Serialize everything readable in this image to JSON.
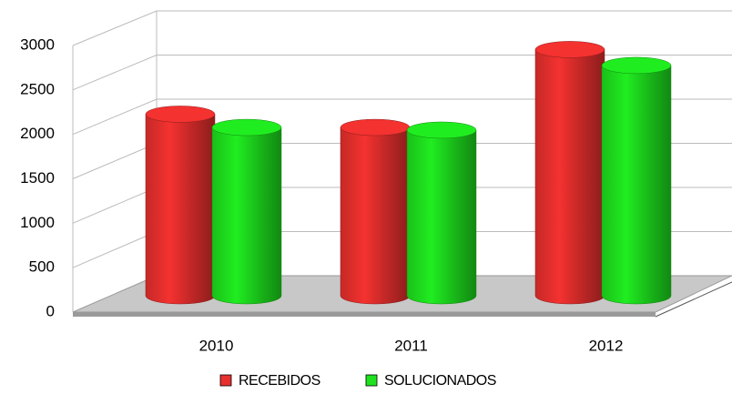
{
  "chart_data": {
    "type": "bar",
    "categories": [
      "2010",
      "2011",
      "2012"
    ],
    "series": [
      {
        "name": "RECEBIDOS",
        "color": "#e8302e",
        "values": [
          2050,
          1900,
          2780
        ]
      },
      {
        "name": "SOLUCIONADOS",
        "color": "#1ee21e",
        "values": [
          1900,
          1870,
          2600
        ]
      }
    ],
    "ylim": [
      0,
      3000
    ],
    "yticks": [
      0,
      500,
      1000,
      1500,
      2000,
      2500,
      3000
    ],
    "grid": true
  }
}
